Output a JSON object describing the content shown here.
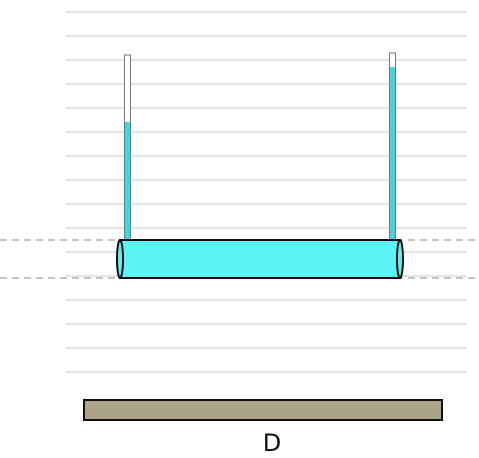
{
  "label": "D"
}
